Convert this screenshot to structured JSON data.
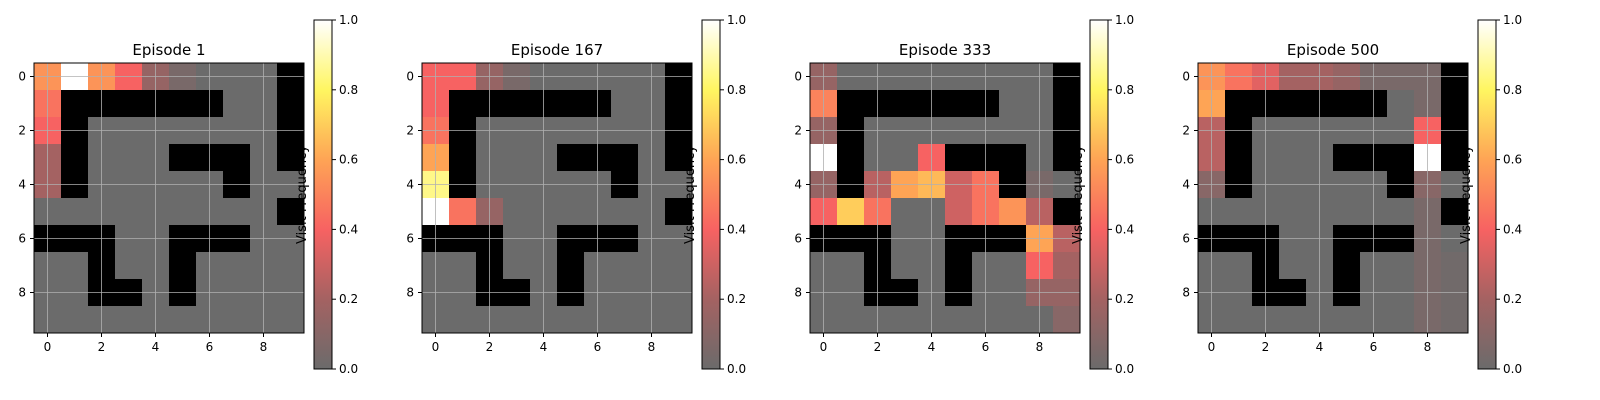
{
  "chart_data": [
    {
      "type": "heatmap",
      "title": "Episode 1",
      "colorbar_label": "Visit Frequency",
      "colorbar_ticks": [
        "0.0",
        "0.2",
        "0.4",
        "0.6",
        "0.8",
        "1.0"
      ],
      "colorbar_range": [
        0,
        1
      ],
      "xticks": [
        "0",
        "2",
        "4",
        "6",
        "8"
      ],
      "yticks": [
        "0",
        "2",
        "4",
        "6",
        "8"
      ],
      "grid": true,
      "walls": [
        [
          0,
          9
        ],
        [
          1,
          1
        ],
        [
          1,
          2
        ],
        [
          1,
          3
        ],
        [
          1,
          4
        ],
        [
          1,
          5
        ],
        [
          1,
          6
        ],
        [
          1,
          9
        ],
        [
          2,
          1
        ],
        [
          2,
          9
        ],
        [
          3,
          1
        ],
        [
          3,
          5
        ],
        [
          3,
          6
        ],
        [
          3,
          7
        ],
        [
          3,
          9
        ],
        [
          4,
          1
        ],
        [
          4,
          7
        ],
        [
          5,
          9
        ],
        [
          6,
          0
        ],
        [
          6,
          1
        ],
        [
          6,
          2
        ],
        [
          6,
          5
        ],
        [
          6,
          6
        ],
        [
          6,
          7
        ],
        [
          7,
          2
        ],
        [
          7,
          5
        ],
        [
          8,
          2
        ],
        [
          8,
          3
        ],
        [
          8,
          5
        ]
      ],
      "values": [
        [
          0.55,
          1.0,
          0.55,
          0.4,
          0.15,
          0.05,
          0,
          0,
          0,
          0
        ],
        [
          0.45,
          0,
          0,
          0,
          0,
          0,
          0,
          0,
          0,
          0
        ],
        [
          0.4,
          0,
          0,
          0,
          0,
          0,
          0,
          0,
          0,
          0
        ],
        [
          0.2,
          0,
          0,
          0,
          0,
          0,
          0,
          0,
          0,
          0
        ],
        [
          0.2,
          0,
          0,
          0,
          0,
          0,
          0,
          0,
          0,
          0
        ],
        [
          0,
          0,
          0,
          0,
          0,
          0,
          0,
          0,
          0,
          0
        ],
        [
          0,
          0,
          0,
          0,
          0,
          0,
          0,
          0,
          0,
          0
        ],
        [
          0,
          0,
          0,
          0,
          0,
          0,
          0,
          0,
          0,
          0
        ],
        [
          0,
          0,
          0,
          0,
          0,
          0,
          0,
          0,
          0,
          0
        ],
        [
          0,
          0,
          0,
          0,
          0,
          0,
          0,
          0,
          0,
          0
        ]
      ]
    },
    {
      "type": "heatmap",
      "title": "Episode 167",
      "colorbar_label": "Visit Frequency",
      "colorbar_ticks": [
        "0.0",
        "0.2",
        "0.4",
        "0.6",
        "0.8",
        "1.0"
      ],
      "colorbar_range": [
        0,
        1
      ],
      "xticks": [
        "0",
        "2",
        "4",
        "6",
        "8"
      ],
      "yticks": [
        "0",
        "2",
        "4",
        "6",
        "8"
      ],
      "grid": true,
      "walls": [
        [
          0,
          9
        ],
        [
          1,
          1
        ],
        [
          1,
          2
        ],
        [
          1,
          3
        ],
        [
          1,
          4
        ],
        [
          1,
          5
        ],
        [
          1,
          6
        ],
        [
          1,
          9
        ],
        [
          2,
          1
        ],
        [
          2,
          9
        ],
        [
          3,
          1
        ],
        [
          3,
          5
        ],
        [
          3,
          6
        ],
        [
          3,
          7
        ],
        [
          3,
          9
        ],
        [
          4,
          1
        ],
        [
          4,
          7
        ],
        [
          5,
          9
        ],
        [
          6,
          0
        ],
        [
          6,
          1
        ],
        [
          6,
          2
        ],
        [
          6,
          5
        ],
        [
          6,
          6
        ],
        [
          6,
          7
        ],
        [
          7,
          2
        ],
        [
          7,
          5
        ],
        [
          8,
          2
        ],
        [
          8,
          3
        ],
        [
          8,
          5
        ]
      ],
      "values": [
        [
          0.4,
          0.4,
          0.15,
          0.05,
          0,
          0,
          0,
          0,
          0,
          0
        ],
        [
          0.4,
          0,
          0,
          0,
          0,
          0,
          0,
          0,
          0,
          0
        ],
        [
          0.45,
          0,
          0,
          0,
          0,
          0,
          0,
          0,
          0,
          0
        ],
        [
          0.6,
          0,
          0,
          0,
          0,
          0,
          0,
          0,
          0,
          0
        ],
        [
          0.85,
          0,
          0,
          0,
          0,
          0,
          0,
          0,
          0,
          0
        ],
        [
          1.0,
          0.45,
          0.15,
          0,
          0,
          0,
          0,
          0,
          0,
          0
        ],
        [
          0,
          0,
          0,
          0,
          0,
          0,
          0,
          0,
          0,
          0
        ],
        [
          0,
          0,
          0,
          0,
          0,
          0,
          0,
          0,
          0,
          0
        ],
        [
          0,
          0,
          0,
          0,
          0,
          0,
          0,
          0,
          0,
          0
        ],
        [
          0,
          0,
          0,
          0,
          0,
          0,
          0,
          0,
          0,
          0
        ]
      ]
    },
    {
      "type": "heatmap",
      "title": "Episode 333",
      "colorbar_label": "Visit Frequency",
      "colorbar_ticks": [
        "0.0",
        "0.2",
        "0.4",
        "0.6",
        "0.8",
        "1.0"
      ],
      "colorbar_range": [
        0,
        1
      ],
      "xticks": [
        "0",
        "2",
        "4",
        "6",
        "8"
      ],
      "yticks": [
        "0",
        "2",
        "4",
        "6",
        "8"
      ],
      "grid": true,
      "walls": [
        [
          0,
          9
        ],
        [
          1,
          1
        ],
        [
          1,
          2
        ],
        [
          1,
          3
        ],
        [
          1,
          4
        ],
        [
          1,
          5
        ],
        [
          1,
          6
        ],
        [
          1,
          9
        ],
        [
          2,
          1
        ],
        [
          2,
          9
        ],
        [
          3,
          1
        ],
        [
          3,
          5
        ],
        [
          3,
          6
        ],
        [
          3,
          7
        ],
        [
          3,
          9
        ],
        [
          4,
          1
        ],
        [
          4,
          7
        ],
        [
          5,
          9
        ],
        [
          6,
          0
        ],
        [
          6,
          1
        ],
        [
          6,
          2
        ],
        [
          6,
          5
        ],
        [
          6,
          6
        ],
        [
          6,
          7
        ],
        [
          7,
          2
        ],
        [
          7,
          5
        ],
        [
          8,
          2
        ],
        [
          8,
          3
        ],
        [
          8,
          5
        ]
      ],
      "values": [
        [
          0.15,
          0,
          0,
          0,
          0,
          0,
          0,
          0,
          0,
          0
        ],
        [
          0.5,
          0,
          0,
          0,
          0,
          0,
          0,
          0,
          0,
          0
        ],
        [
          0.15,
          0,
          0,
          0,
          0,
          0,
          0,
          0,
          0,
          0
        ],
        [
          1.0,
          0,
          0,
          0,
          0.4,
          0,
          0,
          0,
          0,
          0
        ],
        [
          0.15,
          0,
          0.25,
          0.6,
          0.65,
          0.3,
          0.45,
          0,
          0.05,
          0
        ],
        [
          0.4,
          0.7,
          0.45,
          0,
          0,
          0.3,
          0.45,
          0.55,
          0.25,
          0
        ],
        [
          0,
          0,
          0,
          0,
          0,
          0,
          0,
          0,
          0.6,
          0.25
        ],
        [
          0,
          0,
          0,
          0,
          0,
          0,
          0,
          0,
          0.4,
          0.2
        ],
        [
          0,
          0,
          0,
          0,
          0,
          0,
          0,
          0,
          0.15,
          0.15
        ],
        [
          0,
          0,
          0,
          0,
          0,
          0,
          0,
          0,
          0,
          0.1
        ]
      ]
    },
    {
      "type": "heatmap",
      "title": "Episode 500",
      "colorbar_label": "Visit Frequency",
      "colorbar_ticks": [
        "0.0",
        "0.2",
        "0.4",
        "0.6",
        "0.8",
        "1.0"
      ],
      "colorbar_range": [
        0,
        1
      ],
      "xticks": [
        "0",
        "2",
        "4",
        "6",
        "8"
      ],
      "yticks": [
        "0",
        "2",
        "4",
        "6",
        "8"
      ],
      "grid": true,
      "walls": [
        [
          0,
          9
        ],
        [
          1,
          1
        ],
        [
          1,
          2
        ],
        [
          1,
          3
        ],
        [
          1,
          4
        ],
        [
          1,
          5
        ],
        [
          1,
          6
        ],
        [
          1,
          9
        ],
        [
          2,
          1
        ],
        [
          2,
          9
        ],
        [
          3,
          1
        ],
        [
          3,
          5
        ],
        [
          3,
          6
        ],
        [
          3,
          7
        ],
        [
          3,
          9
        ],
        [
          4,
          1
        ],
        [
          4,
          7
        ],
        [
          5,
          9
        ],
        [
          6,
          0
        ],
        [
          6,
          1
        ],
        [
          6,
          2
        ],
        [
          6,
          5
        ],
        [
          6,
          6
        ],
        [
          6,
          7
        ],
        [
          7,
          2
        ],
        [
          7,
          5
        ],
        [
          8,
          2
        ],
        [
          8,
          3
        ],
        [
          8,
          5
        ]
      ],
      "values": [
        [
          0.55,
          0.45,
          0.35,
          0.2,
          0.2,
          0.15,
          0.05,
          0.05,
          0.05,
          0
        ],
        [
          0.6,
          0,
          0,
          0,
          0,
          0,
          0,
          0,
          0.05,
          0
        ],
        [
          0.25,
          0,
          0,
          0,
          0,
          0,
          0,
          0,
          0.4,
          0
        ],
        [
          0.25,
          0,
          0,
          0,
          0,
          0,
          0,
          0,
          1.0,
          0
        ],
        [
          0.1,
          0,
          0,
          0,
          0,
          0,
          0,
          0,
          0.1,
          0
        ],
        [
          0,
          0,
          0,
          0,
          0,
          0,
          0,
          0,
          0.05,
          0
        ],
        [
          0,
          0,
          0,
          0,
          0,
          0,
          0,
          0,
          0.05,
          0
        ],
        [
          0,
          0,
          0,
          0,
          0,
          0,
          0,
          0,
          0.05,
          0.02
        ],
        [
          0,
          0,
          0,
          0,
          0,
          0,
          0,
          0,
          0.05,
          0.02
        ],
        [
          0,
          0,
          0,
          0,
          0,
          0,
          0,
          0,
          0.05,
          0.02
        ]
      ]
    }
  ]
}
